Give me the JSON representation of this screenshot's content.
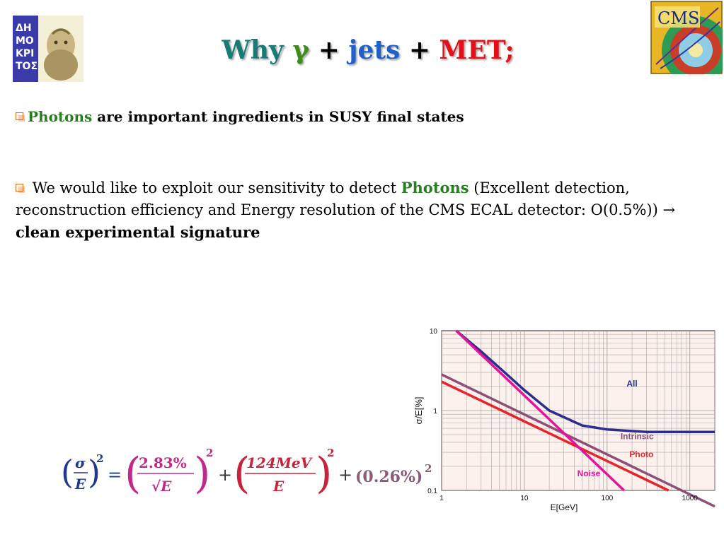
{
  "title": {
    "why": "Why",
    "gamma": "γ",
    "plus1": "+",
    "jets": "jets",
    "plus2": "+",
    "met": "MET;"
  },
  "bullets": [
    {
      "highlight": "Photons",
      "text": " are important ingredients in SUSY final states"
    },
    {
      "text_before": " We would like to exploit our sensitivity to detect ",
      "highlight": "Photons",
      "text_after": " (Excellent detection, reconstruction efficiency and Energy resolution of the CMS ECAL detector: O(0.5%))  → ",
      "bold_end": "clean experimental signature"
    }
  ],
  "logos": {
    "right": "CMS"
  },
  "formula": {
    "sigma": "σ",
    "e": "E",
    "sq": "2",
    "eq": "=",
    "stoch": "2.83%",
    "sqrt_e": "√E",
    "plus": "+",
    "noise": "124MeV",
    "const": "(0.26%)"
  },
  "colors": {
    "title_why": "#1a7a75",
    "title_gamma": "#3f8c1c",
    "title_jets": "#1f60c9",
    "title_met": "#e3101a",
    "photons": "#2a7d22",
    "bullet": "#e06a17",
    "formula_stoch": "#c02a8b",
    "formula_noise": "#c5243a",
    "formula_const": "#8a5c79",
    "formula_main": "#1f3a8a"
  },
  "chart_data": {
    "type": "line",
    "xscale": "log",
    "yscale": "log",
    "xlim": [
      1,
      2000
    ],
    "ylim": [
      0.1,
      10
    ],
    "xlabel": "E[GeV]",
    "ylabel": "σ/E[%]",
    "xticks": [
      "1",
      "10",
      "100",
      "1000"
    ],
    "yticks": [
      "0.1",
      "1",
      "10"
    ],
    "grid": true,
    "series": [
      {
        "name": "All",
        "color": "#2b2e8c",
        "x": [
          1.5,
          3,
          6,
          10,
          20,
          50,
          100,
          300,
          1000,
          2000
        ],
        "y": [
          10,
          5.5,
          2.9,
          1.8,
          1.0,
          0.65,
          0.58,
          0.54,
          0.54,
          0.54
        ]
      },
      {
        "name": "Intrinsic",
        "color": "#8d4f77",
        "x": [
          1,
          2000
        ],
        "y": [
          2.83,
          0.063
        ]
      },
      {
        "name": "Photo",
        "color": "#e8242a",
        "x": [
          1,
          550
        ],
        "y": [
          2.3,
          0.1
        ]
      },
      {
        "name": "Noise",
        "color": "#e3139c",
        "x": [
          1.5,
          160
        ],
        "y": [
          10,
          0.1
        ]
      }
    ],
    "label_positions_note": "",
    "labels": [
      "All",
      "Intrinsic",
      "Photo",
      "Noise"
    ]
  }
}
